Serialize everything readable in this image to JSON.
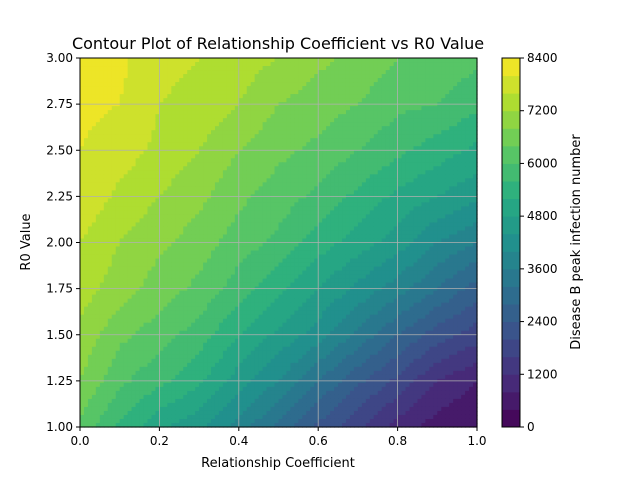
{
  "chart_data": {
    "type": "heatmap",
    "subtype": "filled-contour",
    "title": "Contour Plot of Relationship Coefficient vs R0 Value",
    "xlabel": "Relationship Coefficient",
    "ylabel": "R0 Value",
    "colorbar_label": "Disease B peak infection number",
    "xlim": [
      0.0,
      1.0
    ],
    "ylim": [
      1.0,
      3.0
    ],
    "x_ticks": [
      "0.0",
      "0.2",
      "0.4",
      "0.6",
      "0.8",
      "1.0"
    ],
    "y_ticks": [
      "1.00",
      "1.25",
      "1.50",
      "1.75",
      "2.00",
      "2.25",
      "2.50",
      "2.75",
      "3.00"
    ],
    "colorbar_ticks": [
      "0",
      "1200",
      "2400",
      "3600",
      "4800",
      "6000",
      "7200",
      "8400"
    ],
    "colorbar_range": [
      0,
      8400
    ],
    "level_step": 400,
    "colormap": "viridis",
    "grid": true,
    "x": [
      0.0,
      0.1,
      0.2,
      0.3,
      0.4,
      0.5,
      0.6,
      0.7,
      0.8,
      0.9,
      1.0
    ],
    "y": [
      1.0,
      1.25,
      1.5,
      1.75,
      2.0,
      2.25,
      2.5,
      2.75,
      3.0
    ],
    "z": [
      [
        6300,
        5500,
        4900,
        4500,
        3800,
        3100,
        2300,
        1700,
        1000,
        600,
        400
      ],
      [
        6800,
        6100,
        5700,
        5300,
        4600,
        4000,
        3200,
        2500,
        1900,
        1200,
        800
      ],
      [
        7100,
        6500,
        6200,
        5800,
        5200,
        4700,
        4200,
        3500,
        2800,
        2200,
        1800
      ],
      [
        7400,
        7000,
        6600,
        6300,
        5800,
        5300,
        4800,
        4300,
        3800,
        3200,
        2600
      ],
      [
        7600,
        7200,
        6900,
        6600,
        6200,
        5900,
        5400,
        5000,
        4600,
        4000,
        3600
      ],
      [
        7900,
        7500,
        7200,
        6900,
        6500,
        6200,
        5900,
        5500,
        5100,
        4800,
        4500
      ],
      [
        8000,
        7800,
        7500,
        7200,
        6800,
        6500,
        6300,
        6000,
        5700,
        5400,
        5100
      ],
      [
        8100,
        8000,
        7600,
        7500,
        7200,
        6800,
        6600,
        6400,
        6100,
        6000,
        5700
      ],
      [
        8200,
        8100,
        7700,
        7600,
        7400,
        7200,
        6900,
        6700,
        6400,
        6300,
        6100
      ]
    ]
  }
}
